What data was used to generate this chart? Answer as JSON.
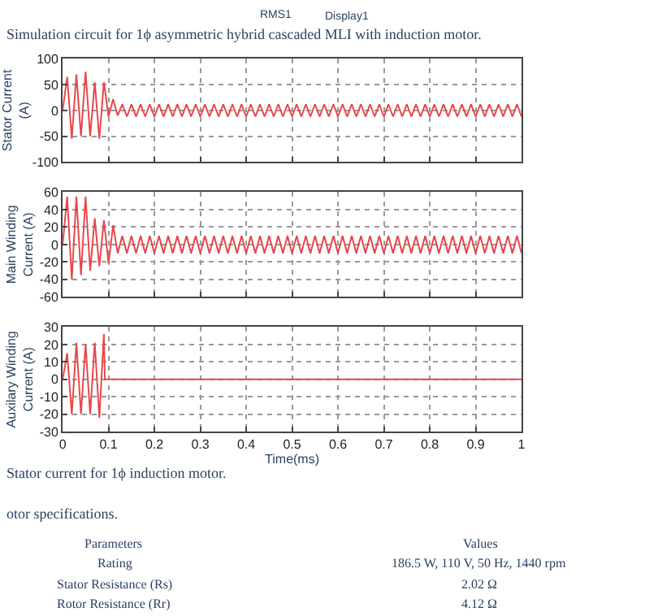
{
  "chart_data": [
    {
      "type": "line",
      "ylabel": "Stator Current\n(A)",
      "annotations": [
        "RMS1",
        "Display1",
        "Simulation circuit for 1ϕ asymmetric hybrid cascaded MLI with induction motor."
      ],
      "x": [
        0,
        0.01,
        0.02,
        0.03,
        0.04,
        0.05,
        0.06,
        0.07,
        0.08,
        0.09,
        0.1,
        0.11,
        0.12,
        0.13,
        0.14,
        0.15,
        0.16,
        0.17,
        0.18,
        0.19,
        0.2,
        0.21,
        0.22,
        0.23,
        0.24,
        0.25,
        0.26,
        0.27,
        0.28,
        0.29,
        0.3,
        0.31,
        0.32,
        0.33,
        0.34,
        0.35,
        0.36,
        0.37,
        0.38,
        0.39,
        0.4,
        0.41,
        0.42,
        0.43,
        0.44,
        0.45,
        0.46,
        0.47,
        0.48,
        0.49,
        0.5,
        0.51,
        0.52,
        0.53,
        0.54,
        0.55,
        0.56,
        0.57,
        0.58,
        0.59,
        0.6,
        0.61,
        0.62,
        0.63,
        0.64,
        0.65,
        0.66,
        0.67,
        0.68,
        0.69,
        0.7,
        0.71,
        0.72,
        0.73,
        0.74,
        0.75,
        0.76,
        0.77,
        0.78,
        0.79,
        0.8,
        0.81,
        0.82,
        0.83,
        0.84,
        0.85,
        0.86,
        0.87,
        0.88,
        0.89,
        0.9,
        0.91,
        0.92,
        0.93,
        0.94,
        0.95,
        0.96,
        0.97,
        0.98,
        0.99,
        1
      ],
      "series": [
        {
          "color": "#e8474b",
          "values": [
            0,
            65,
            -55,
            70,
            -50,
            75,
            -50,
            55,
            -55,
            55,
            -12,
            22,
            -10,
            12,
            -12,
            12,
            -12,
            12,
            -12,
            12,
            -12,
            12,
            -12,
            12,
            -12,
            12,
            -12,
            12,
            -12,
            12,
            -12,
            12,
            -12,
            12,
            -12,
            12,
            -12,
            12,
            -12,
            12,
            -12,
            12,
            -12,
            12,
            -12,
            12,
            -12,
            12,
            -12,
            12,
            -12,
            12,
            -12,
            12,
            -12,
            12,
            -12,
            12,
            -12,
            12,
            -12,
            12,
            -12,
            12,
            -12,
            12,
            -12,
            12,
            -12,
            12,
            -12,
            12,
            -12,
            12,
            -12,
            12,
            -12,
            12,
            -12,
            12,
            -12,
            12,
            -12,
            12,
            -12,
            12,
            -12,
            12,
            -12,
            12,
            -12,
            12,
            -12,
            12,
            -12,
            12,
            -12,
            12,
            -12,
            12,
            -12
          ]
        }
      ],
      "xlim": [
        0,
        1
      ],
      "xticks": [
        {
          "value": 0,
          "label": null
        },
        {
          "value": 0.1,
          "label": null
        },
        {
          "value": 0.2,
          "label": null
        },
        {
          "value": 0.3,
          "label": null
        },
        {
          "value": 0.4,
          "label": null
        },
        {
          "value": 0.5,
          "label": null
        },
        {
          "value": 0.6,
          "label": null
        },
        {
          "value": 0.7,
          "label": null
        },
        {
          "value": 0.8,
          "label": null
        },
        {
          "value": 0.9,
          "label": null
        },
        {
          "value": 1,
          "label": null
        }
      ],
      "ylim": [
        -100,
        100
      ],
      "yticks": [
        -100,
        -50,
        0,
        50,
        100
      ],
      "grid": true,
      "tick_labels": "y"
    },
    {
      "type": "line",
      "ylabel": "Main Winding\nCurrent (A)",
      "x": [
        0,
        0.01,
        0.02,
        0.03,
        0.04,
        0.05,
        0.06,
        0.07,
        0.08,
        0.09,
        0.1,
        0.11,
        0.12,
        0.13,
        0.14,
        0.15,
        0.16,
        0.17,
        0.18,
        0.19,
        0.2,
        0.21,
        0.22,
        0.23,
        0.24,
        0.25,
        0.26,
        0.27,
        0.28,
        0.29,
        0.3,
        0.31,
        0.32,
        0.33,
        0.34,
        0.35,
        0.36,
        0.37,
        0.38,
        0.39,
        0.4,
        0.41,
        0.42,
        0.43,
        0.44,
        0.45,
        0.46,
        0.47,
        0.48,
        0.49,
        0.5,
        0.51,
        0.52,
        0.53,
        0.54,
        0.55,
        0.56,
        0.57,
        0.58,
        0.59,
        0.6,
        0.61,
        0.62,
        0.63,
        0.64,
        0.65,
        0.66,
        0.67,
        0.68,
        0.69,
        0.7,
        0.71,
        0.72,
        0.73,
        0.74,
        0.75,
        0.76,
        0.77,
        0.78,
        0.79,
        0.8,
        0.81,
        0.82,
        0.83,
        0.84,
        0.85,
        0.86,
        0.87,
        0.88,
        0.89,
        0.9,
        0.91,
        0.92,
        0.93,
        0.94,
        0.95,
        0.96,
        0.97,
        0.98,
        0.99,
        1
      ],
      "series": [
        {
          "color": "#e8474b",
          "values": [
            0,
            55,
            -40,
            55,
            -35,
            55,
            -30,
            30,
            -25,
            28,
            -22,
            22,
            -10,
            10,
            -10,
            10,
            -10,
            10,
            -10,
            10,
            -10,
            10,
            -10,
            10,
            -10,
            10,
            -10,
            10,
            -10,
            10,
            -10,
            10,
            -10,
            10,
            -10,
            10,
            -10,
            10,
            -10,
            10,
            -10,
            10,
            -10,
            10,
            -10,
            10,
            -10,
            10,
            -10,
            10,
            -10,
            10,
            -10,
            10,
            -10,
            10,
            -10,
            10,
            -10,
            10,
            -10,
            10,
            -10,
            10,
            -10,
            10,
            -10,
            10,
            -10,
            10,
            -10,
            10,
            -10,
            10,
            -10,
            10,
            -10,
            10,
            -10,
            10,
            -10,
            10,
            -10,
            10,
            -10,
            10,
            -10,
            10,
            -10,
            10,
            -10,
            10,
            -10,
            10,
            -10,
            10,
            -10,
            10,
            -10,
            10,
            -10
          ]
        }
      ],
      "xlim": [
        0,
        1
      ],
      "xticks": [
        {
          "value": 0,
          "label": null
        },
        {
          "value": 0.1,
          "label": null
        },
        {
          "value": 0.2,
          "label": null
        },
        {
          "value": 0.3,
          "label": null
        },
        {
          "value": 0.4,
          "label": null
        },
        {
          "value": 0.5,
          "label": null
        },
        {
          "value": 0.6,
          "label": null
        },
        {
          "value": 0.7,
          "label": null
        },
        {
          "value": 0.8,
          "label": null
        },
        {
          "value": 0.9,
          "label": null
        },
        {
          "value": 1,
          "label": null
        }
      ],
      "ylim": [
        -60,
        60
      ],
      "yticks": [
        -60,
        -40,
        -20,
        0,
        20,
        40,
        60
      ],
      "grid": true,
      "tick_labels": "y"
    },
    {
      "type": "line",
      "ylabel": "Auxilary Winding\nCurrent (A)",
      "xlabel": "Time(ms)",
      "annotations": [
        "Stator current for 1ϕ induction motor.",
        "otor specifications.",
        "Parameters",
        "Values",
        "Rating",
        "186.5 W, 110 V, 50 Hz, 1440 rpm",
        "Stator Resistance (Rs)",
        "2.02 Ω",
        "Rotor Resistance (Rr)",
        "4.12 Ω"
      ],
      "x": [
        0,
        0.01,
        0.02,
        0.03,
        0.04,
        0.05,
        0.06,
        0.07,
        0.08,
        0.09,
        0.092,
        1
      ],
      "series": [
        {
          "color": "#e8474b",
          "values": [
            0,
            15,
            -20,
            21,
            -20,
            20,
            -20,
            21,
            -22,
            26,
            0,
            0
          ]
        }
      ],
      "xlim": [
        0,
        1
      ],
      "xticks": [
        0,
        0.1,
        0.2,
        0.3,
        0.4,
        0.5,
        0.6,
        0.7,
        0.8,
        0.9,
        1
      ],
      "ylim": [
        -30,
        30
      ],
      "yticks": [
        -30,
        -20,
        -10,
        0,
        10,
        20,
        30
      ],
      "grid": true
    }
  ]
}
